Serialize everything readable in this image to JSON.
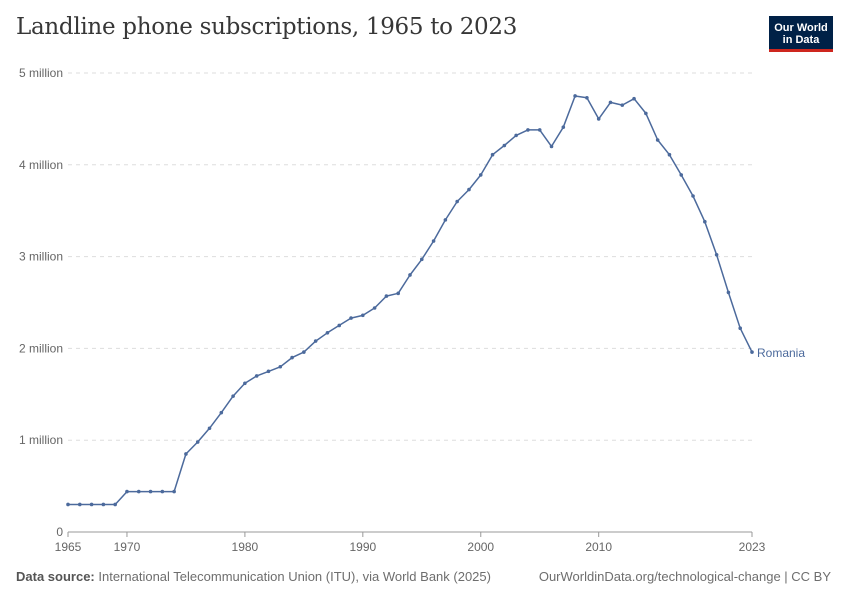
{
  "header": {
    "title": "Landline phone subscriptions, 1965 to 2023",
    "logo_line1": "Our World",
    "logo_line2": "in Data"
  },
  "footer": {
    "source_label": "Data source:",
    "source_text": "International Telecommunication Union (ITU), via World Bank (2025)",
    "credit": "OurWorldinData.org/technological-change | CC BY"
  },
  "colors": {
    "series": "#4c6a9c",
    "grid": "#dddddd",
    "axis_text": "#666666",
    "logo_bg": "#002147",
    "logo_accent": "#ce261e"
  },
  "chart_data": {
    "type": "line",
    "title": "Landline phone subscriptions, 1965 to 2023",
    "xlabel": "",
    "ylabel": "",
    "xlim": [
      1965,
      2023
    ],
    "ylim": [
      0,
      5000000
    ],
    "x_ticks": [
      1965,
      1970,
      1980,
      1990,
      2000,
      2010,
      2023
    ],
    "y_ticks": [
      {
        "value": 0,
        "label": "0"
      },
      {
        "value": 1000000,
        "label": "1 million"
      },
      {
        "value": 2000000,
        "label": "2 million"
      },
      {
        "value": 3000000,
        "label": "3 million"
      },
      {
        "value": 4000000,
        "label": "4 million"
      },
      {
        "value": 5000000,
        "label": "5 million"
      }
    ],
    "grid": true,
    "legend": "end-of-line label",
    "series": [
      {
        "name": "Romania",
        "x": [
          1965,
          1966,
          1967,
          1968,
          1969,
          1970,
          1971,
          1972,
          1973,
          1974,
          1975,
          1976,
          1977,
          1978,
          1979,
          1980,
          1981,
          1982,
          1983,
          1984,
          1985,
          1986,
          1987,
          1988,
          1989,
          1990,
          1991,
          1992,
          1993,
          1994,
          1995,
          1996,
          1997,
          1998,
          1999,
          2000,
          2001,
          2002,
          2003,
          2004,
          2005,
          2006,
          2007,
          2008,
          2009,
          2010,
          2011,
          2012,
          2013,
          2014,
          2015,
          2016,
          2017,
          2018,
          2019,
          2020,
          2021,
          2022,
          2023
        ],
        "values": [
          300000,
          300000,
          300000,
          300000,
          300000,
          440000,
          440000,
          440000,
          440000,
          440000,
          850000,
          980000,
          1130000,
          1300000,
          1480000,
          1620000,
          1700000,
          1750000,
          1800000,
          1900000,
          1960000,
          2080000,
          2170000,
          2250000,
          2330000,
          2360000,
          2440000,
          2570000,
          2600000,
          2800000,
          2970000,
          3170000,
          3400000,
          3600000,
          3730000,
          3890000,
          4110000,
          4210000,
          4320000,
          4380000,
          4380000,
          4200000,
          4410000,
          4750000,
          4730000,
          4500000,
          4680000,
          4650000,
          4720000,
          4560000,
          4270000,
          4110000,
          3890000,
          3660000,
          3380000,
          3020000,
          2610000,
          2220000,
          1960000
        ]
      }
    ]
  }
}
